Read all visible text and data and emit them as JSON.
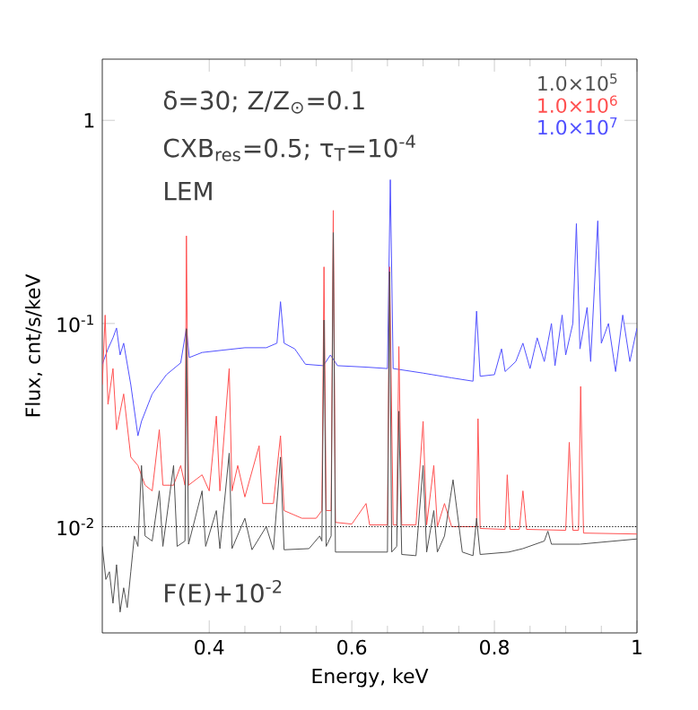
{
  "chart_data": {
    "type": "line",
    "xlabel": "Energy, keV",
    "ylabel": "Flux, cnt/s/keV",
    "log": "y",
    "xlim": [
      0.25,
      1
    ],
    "ylim": [
      0.003,
      2
    ],
    "xticks": [
      0.4,
      0.6,
      0.8,
      1
    ],
    "yticks": [
      {
        "value": 1,
        "label": "1"
      },
      {
        "value": 0.1,
        "label": "10$^{-1}$"
      },
      {
        "value": 0.01,
        "label": "10$^{-2}$"
      }
    ],
    "legend": "top right",
    "grid": false,
    "line_style": "solid",
    "marker": "none",
    "annotations": [
      "δ=30; Z/Z$_{⊙}$=0.1",
      "CXB$_{res}$=0.5; τ$_{T}$=10$^{-4}$",
      "LEM",
      "F(E)+10$^{-2}$"
    ],
    "ref_lines": [
      {
        "axis": "y",
        "value": 0.01,
        "color": "#000000",
        "line_style": "dotted"
      }
    ],
    "series": [
      {
        "name": "1.0×10$^{5}$",
        "color": "#505050",
        "x": [
          0.25,
          0.255,
          0.26,
          0.265,
          0.27,
          0.275,
          0.28,
          0.285,
          0.29,
          0.295,
          0.3,
          0.305,
          0.31,
          0.32,
          0.33,
          0.335,
          0.35,
          0.355,
          0.366,
          0.368,
          0.371,
          0.39,
          0.395,
          0.41,
          0.415,
          0.428,
          0.432,
          0.45,
          0.46,
          0.48,
          0.49,
          0.5,
          0.505,
          0.54,
          0.555,
          0.558,
          0.561,
          0.564,
          0.571,
          0.574,
          0.577,
          0.62,
          0.65,
          0.653,
          0.656,
          0.663,
          0.666,
          0.67,
          0.69,
          0.7,
          0.705,
          0.715,
          0.72,
          0.73,
          0.742,
          0.755,
          0.77,
          0.775,
          0.78,
          0.82,
          0.84,
          0.87,
          0.875,
          0.88,
          0.92,
          1.0
        ],
        "values": [
          0.008,
          0.0055,
          0.006,
          0.0042,
          0.0065,
          0.0038,
          0.005,
          0.004,
          0.006,
          0.009,
          0.008,
          0.02,
          0.009,
          0.0085,
          0.015,
          0.008,
          0.02,
          0.008,
          0.0085,
          0.094,
          0.0082,
          0.015,
          0.008,
          0.012,
          0.0078,
          0.023,
          0.0078,
          0.011,
          0.0077,
          0.01,
          0.0077,
          0.022,
          0.0077,
          0.0078,
          0.009,
          0.0085,
          0.104,
          0.008,
          0.009,
          0.28,
          0.0075,
          0.0075,
          0.0075,
          0.18,
          0.0075,
          0.008,
          0.037,
          0.0073,
          0.0072,
          0.02,
          0.0075,
          0.012,
          0.0075,
          0.009,
          0.017,
          0.0075,
          0.0072,
          0.011,
          0.0073,
          0.0075,
          0.0078,
          0.0085,
          0.0095,
          0.0082,
          0.0082,
          0.0087
        ]
      },
      {
        "name": "1.0×10$^{6}$",
        "color": "#ff5050",
        "x": [
          0.25,
          0.254,
          0.258,
          0.265,
          0.27,
          0.28,
          0.29,
          0.3,
          0.31,
          0.32,
          0.33,
          0.335,
          0.35,
          0.36,
          0.366,
          0.368,
          0.371,
          0.39,
          0.4,
          0.41,
          0.415,
          0.428,
          0.432,
          0.44,
          0.45,
          0.47,
          0.475,
          0.49,
          0.5,
          0.505,
          0.53,
          0.55,
          0.558,
          0.561,
          0.564,
          0.571,
          0.574,
          0.577,
          0.6,
          0.62,
          0.625,
          0.65,
          0.653,
          0.658,
          0.663,
          0.666,
          0.67,
          0.69,
          0.7,
          0.705,
          0.715,
          0.72,
          0.73,
          0.74,
          0.775,
          0.777,
          0.78,
          0.815,
          0.818,
          0.822,
          0.835,
          0.84,
          0.845,
          0.9,
          0.905,
          0.91,
          0.918,
          0.921,
          0.925,
          1.0
        ],
        "values": [
          0.05,
          0.11,
          0.04,
          0.06,
          0.03,
          0.045,
          0.022,
          0.02,
          0.016,
          0.015,
          0.03,
          0.016,
          0.016,
          0.02,
          0.016,
          0.27,
          0.016,
          0.018,
          0.015,
          0.035,
          0.015,
          0.06,
          0.015,
          0.02,
          0.014,
          0.025,
          0.013,
          0.013,
          0.028,
          0.012,
          0.011,
          0.011,
          0.012,
          0.19,
          0.012,
          0.012,
          0.36,
          0.0105,
          0.0103,
          0.013,
          0.0102,
          0.0102,
          0.19,
          0.0102,
          0.0102,
          0.077,
          0.0102,
          0.0102,
          0.033,
          0.0102,
          0.02,
          0.01,
          0.013,
          0.01,
          0.01,
          0.034,
          0.0098,
          0.0097,
          0.018,
          0.0097,
          0.0097,
          0.015,
          0.0097,
          0.0096,
          0.026,
          0.0096,
          0.0096,
          0.049,
          0.0093,
          0.0092
        ]
      },
      {
        "name": "1.0×10$^{7}$",
        "color": "#5050ff",
        "x": [
          0.25,
          0.258,
          0.265,
          0.27,
          0.275,
          0.28,
          0.29,
          0.3,
          0.305,
          0.32,
          0.34,
          0.36,
          0.368,
          0.372,
          0.39,
          0.42,
          0.45,
          0.48,
          0.495,
          0.5,
          0.505,
          0.52,
          0.535,
          0.56,
          0.57,
          0.58,
          0.62,
          0.65,
          0.654,
          0.658,
          0.7,
          0.74,
          0.77,
          0.775,
          0.78,
          0.8,
          0.81,
          0.815,
          0.83,
          0.84,
          0.85,
          0.86,
          0.87,
          0.88,
          0.885,
          0.895,
          0.9,
          0.91,
          0.915,
          0.92,
          0.93,
          0.935,
          0.945,
          0.95,
          0.96,
          0.97,
          0.98,
          0.99,
          1.0
        ],
        "values": [
          0.063,
          0.075,
          0.085,
          0.095,
          0.07,
          0.08,
          0.05,
          0.028,
          0.033,
          0.045,
          0.056,
          0.064,
          0.095,
          0.068,
          0.072,
          0.074,
          0.076,
          0.076,
          0.08,
          0.128,
          0.08,
          0.075,
          0.063,
          0.062,
          0.07,
          0.062,
          0.061,
          0.06,
          0.51,
          0.06,
          0.057,
          0.054,
          0.052,
          0.115,
          0.055,
          0.056,
          0.075,
          0.058,
          0.065,
          0.08,
          0.06,
          0.085,
          0.065,
          0.1,
          0.062,
          0.11,
          0.07,
          0.1,
          0.31,
          0.075,
          0.12,
          0.065,
          0.32,
          0.08,
          0.1,
          0.058,
          0.11,
          0.065,
          0.095
        ]
      }
    ]
  }
}
